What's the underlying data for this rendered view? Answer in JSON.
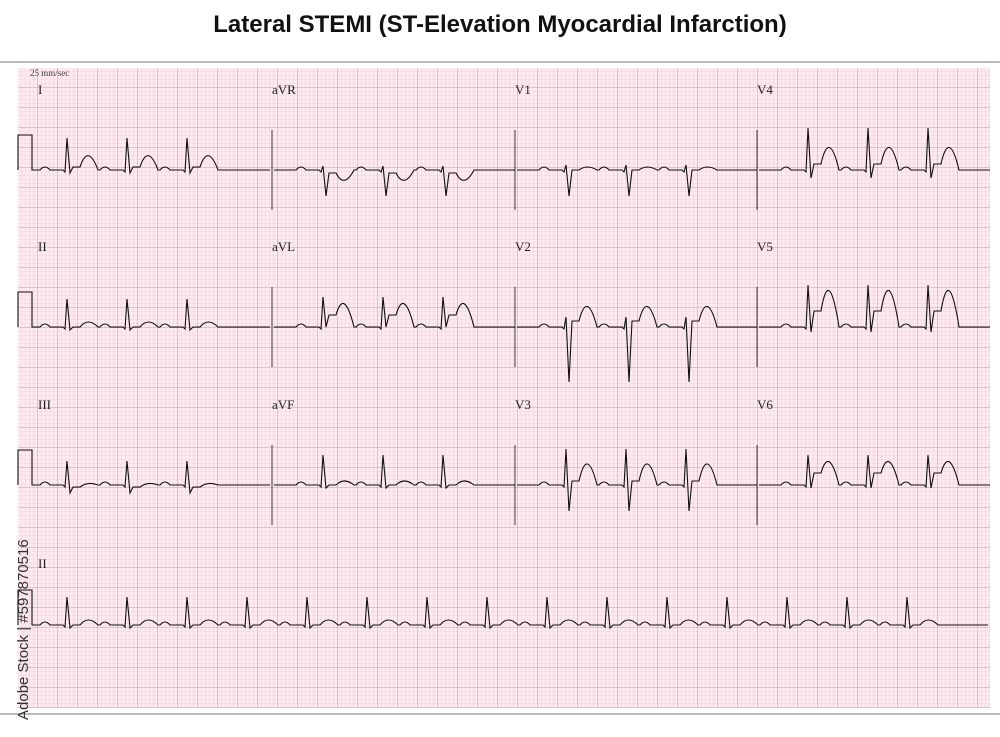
{
  "header": {
    "title": "Lateral STEMI (ST-Elevation Myocardial Infarction)"
  },
  "ecg": {
    "speed": "25 mm/sec",
    "leads": [
      [
        "I",
        "aVR",
        "V1",
        "V4"
      ],
      [
        "II",
        "aVL",
        "V2",
        "V5"
      ],
      [
        "III",
        "aVF",
        "V3",
        "V6"
      ]
    ],
    "rhythm_strip": "II"
  },
  "watermark": "Adobe Stock | #597870516"
}
